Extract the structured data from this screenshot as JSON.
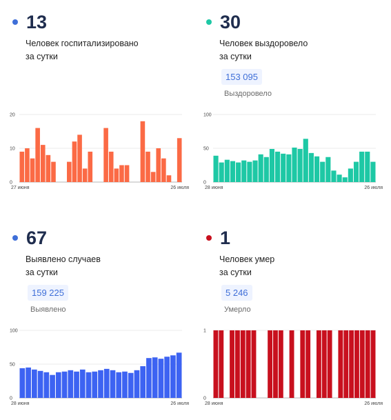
{
  "panels": [
    {
      "number": "13",
      "desc_line1": "Человек госпитализировано",
      "desc_line2": "за сутки",
      "dot_color": "#3f6fd8",
      "bar_color": "#fb6a45",
      "pill": null,
      "pill_label": null
    },
    {
      "number": "30",
      "desc_line1": "Человек выздоровело",
      "desc_line2": "за сутки",
      "dot_color": "#1ec8a5",
      "bar_color": "#1ec8a5",
      "pill": "153 095",
      "pill_label": "Выздоровело"
    },
    {
      "number": "67",
      "desc_line1": "Выявлено случаев",
      "desc_line2": "за сутки",
      "dot_color": "#3f6fd8",
      "bar_color": "#3d63f2",
      "pill": "159 225",
      "pill_label": "Выявлено"
    },
    {
      "number": "1",
      "desc_line1": "Человек умер",
      "desc_line2": "за сутки",
      "dot_color": "#c8101e",
      "bar_color": "#c8101e",
      "pill": "5 246",
      "pill_label": "Умерло"
    }
  ],
  "chart_data": [
    {
      "type": "bar",
      "x_start_label": "27 июня",
      "x_end_label": "26 июля",
      "y_ticks": [
        "0",
        "10",
        "20"
      ],
      "ylim": [
        0,
        20
      ],
      "values": [
        9,
        10,
        7,
        16,
        11,
        8,
        6,
        null,
        null,
        6,
        12,
        14,
        4,
        9,
        null,
        null,
        16,
        9,
        4,
        5,
        5,
        null,
        null,
        18,
        9,
        3,
        10,
        7,
        2,
        null,
        13
      ]
    },
    {
      "type": "bar",
      "x_start_label": "28 июня",
      "x_end_label": "26 июля",
      "y_ticks": [
        "0",
        "50",
        "100"
      ],
      "ylim": [
        0,
        100
      ],
      "values": [
        39,
        29,
        33,
        31,
        29,
        32,
        30,
        32,
        41,
        37,
        49,
        45,
        42,
        41,
        51,
        49,
        64,
        43,
        38,
        30,
        37,
        17,
        11,
        7,
        20,
        30,
        45,
        45,
        30
      ]
    },
    {
      "type": "bar",
      "x_start_label": "28 июня",
      "x_end_label": "26 июля",
      "y_ticks": [
        "0",
        "50",
        "100"
      ],
      "ylim": [
        0,
        100
      ],
      "values": [
        44,
        45,
        42,
        40,
        38,
        34,
        38,
        39,
        41,
        39,
        42,
        38,
        39,
        41,
        43,
        41,
        38,
        39,
        37,
        41,
        47,
        59,
        60,
        58,
        61,
        63,
        67
      ]
    },
    {
      "type": "bar",
      "x_start_label": "28 июня",
      "x_end_label": "26 июля",
      "y_ticks": [
        "0",
        "1"
      ],
      "ylim": [
        0,
        1
      ],
      "values": [
        1,
        1,
        0,
        1,
        1,
        1,
        1,
        1,
        0,
        0,
        1,
        1,
        1,
        0,
        1,
        0,
        1,
        1,
        0,
        1,
        1,
        1,
        0,
        1,
        1,
        1,
        1,
        1,
        1,
        1
      ]
    }
  ]
}
